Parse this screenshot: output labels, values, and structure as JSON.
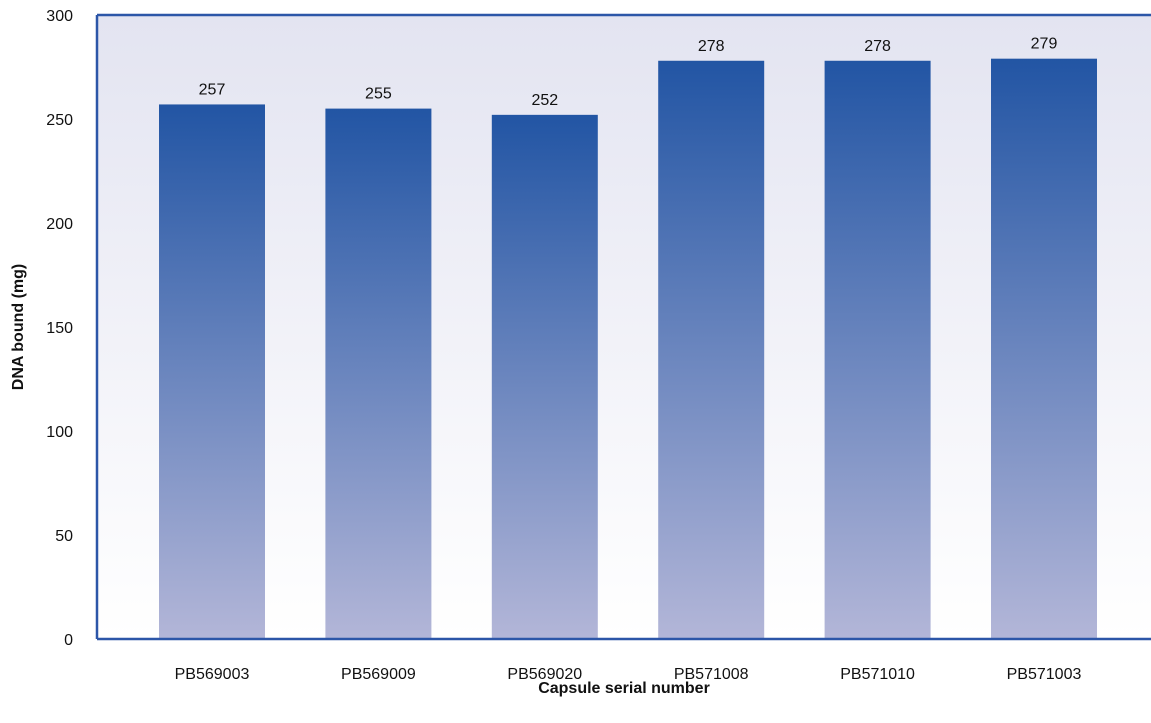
{
  "chart_data": {
    "type": "bar",
    "title": "",
    "xlabel": "Capsule serial number",
    "ylabel": "DNA bound (mg)",
    "categories": [
      "PB569003",
      "PB569009",
      "PB569020",
      "PB571008",
      "PB571010",
      "PB571003"
    ],
    "values": [
      257,
      255,
      252,
      278,
      278,
      279
    ],
    "ylim": [
      0,
      300
    ],
    "yticks": [
      0,
      50,
      100,
      150,
      200,
      250,
      300
    ],
    "grid": false,
    "legend": "none",
    "colors": {
      "bar_top": "#2255a4",
      "bar_bottom": "#b3b6d8",
      "plot_bg_top": "#e3e4f1",
      "plot_bg_bottom": "#ffffff",
      "axis": "#2c56a8"
    }
  }
}
